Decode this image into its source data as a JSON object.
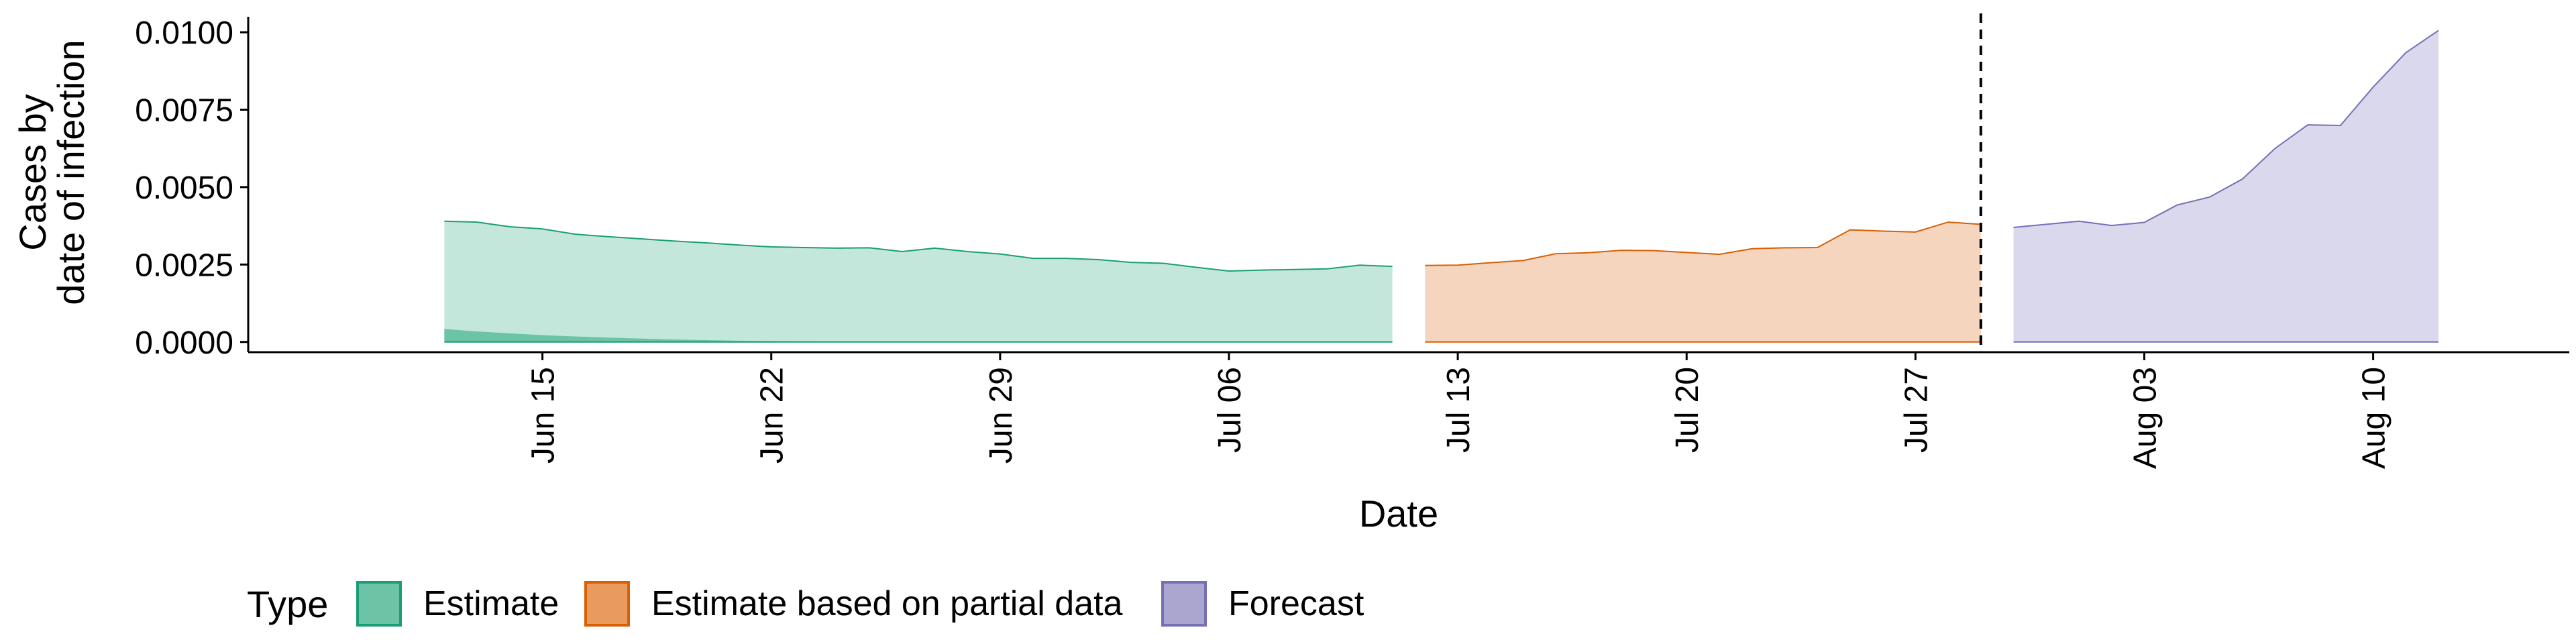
{
  "chart_data": {
    "type": "area",
    "xlabel": "Date",
    "ylabel_lines": [
      "Cases by",
      "date of infection"
    ],
    "x_domain": [
      "2020-06-06",
      "2020-08-16"
    ],
    "ylim": [
      -0.00033,
      0.0105
    ],
    "y_ticks": [
      {
        "value": 0.0,
        "label": "0.0000"
      },
      {
        "value": 0.0025,
        "label": "0.0025"
      },
      {
        "value": 0.005,
        "label": "0.0050"
      },
      {
        "value": 0.0075,
        "label": "0.0075"
      },
      {
        "value": 0.01,
        "label": "0.0100"
      }
    ],
    "x_ticks": [
      {
        "date": "2020-06-15",
        "label": "Jun 15"
      },
      {
        "date": "2020-06-22",
        "label": "Jun 22"
      },
      {
        "date": "2020-06-29",
        "label": "Jun 29"
      },
      {
        "date": "2020-07-06",
        "label": "Jul 06"
      },
      {
        "date": "2020-07-13",
        "label": "Jul 13"
      },
      {
        "date": "2020-07-20",
        "label": "Jul 20"
      },
      {
        "date": "2020-07-27",
        "label": "Jul 27"
      },
      {
        "date": "2020-08-03",
        "label": "Aug 03"
      },
      {
        "date": "2020-08-10",
        "label": "Aug 10"
      }
    ],
    "vline_date": "2020-07-29",
    "legend_title": "Type",
    "legend_position": "bottom",
    "grid": false,
    "series": [
      {
        "name": "Estimate",
        "fill": "#c4e7dc",
        "stroke": "#1b9e77",
        "inner_fill": "#6cc3a6",
        "x": [
          "2020-06-12",
          "2020-06-13",
          "2020-06-14",
          "2020-06-15",
          "2020-06-16",
          "2020-06-17",
          "2020-06-18",
          "2020-06-19",
          "2020-06-20",
          "2020-06-21",
          "2020-06-22",
          "2020-06-23",
          "2020-06-24",
          "2020-06-25",
          "2020-06-26",
          "2020-06-27",
          "2020-06-28",
          "2020-06-29",
          "2020-06-30",
          "2020-07-01",
          "2020-07-02",
          "2020-07-03",
          "2020-07-04",
          "2020-07-05",
          "2020-07-06",
          "2020-07-07",
          "2020-07-08",
          "2020-07-09",
          "2020-07-10",
          "2020-07-11"
        ],
        "upper": [
          0.0039,
          0.00387,
          0.00372,
          0.00365,
          0.00348,
          0.0034,
          0.00333,
          0.00326,
          0.0032,
          0.00313,
          0.00307,
          0.00305,
          0.00303,
          0.00304,
          0.00292,
          0.00303,
          0.00292,
          0.00284,
          0.0027,
          0.0027,
          0.00266,
          0.00257,
          0.00254,
          0.00241,
          0.00229,
          0.00232,
          0.00234,
          0.00236,
          0.00248,
          0.00244
        ],
        "lower": [
          0,
          0,
          0,
          0,
          0,
          0,
          0,
          0,
          0,
          0,
          0,
          0,
          0,
          0,
          0,
          0,
          0,
          0,
          0,
          0,
          0,
          0,
          0,
          0,
          0,
          0,
          0,
          0,
          0,
          0
        ],
        "inner_upper": [
          0.00042,
          0.00034,
          0.00028,
          0.00022,
          0.00018,
          0.00014,
          0.00011,
          8e-05,
          6e-05,
          4e-05,
          3e-05,
          2e-05,
          1e-05,
          1e-05,
          0,
          0,
          0,
          0,
          0,
          0,
          0,
          0,
          0,
          0,
          0,
          0,
          0,
          0,
          0,
          0
        ]
      },
      {
        "name": "Estimate based on partial data",
        "fill": "#f6d5bf",
        "stroke": "#d95f02",
        "inner_fill": "#e99a5e",
        "x": [
          "2020-07-12",
          "2020-07-13",
          "2020-07-14",
          "2020-07-15",
          "2020-07-16",
          "2020-07-17",
          "2020-07-18",
          "2020-07-19",
          "2020-07-20",
          "2020-07-21",
          "2020-07-22",
          "2020-07-23",
          "2020-07-24",
          "2020-07-25",
          "2020-07-26",
          "2020-07-27",
          "2020-07-28",
          "2020-07-29"
        ],
        "upper": [
          0.00247,
          0.00248,
          0.00256,
          0.00263,
          0.00285,
          0.00288,
          0.00296,
          0.00295,
          0.00289,
          0.00283,
          0.00301,
          0.00304,
          0.00305,
          0.00362,
          0.00358,
          0.00355,
          0.00387,
          0.0038
        ],
        "lower": [
          0,
          0,
          0,
          0,
          0,
          0,
          0,
          0,
          0,
          0,
          0,
          0,
          0,
          0,
          0,
          0,
          0,
          0
        ],
        "inner_upper": [
          0,
          0,
          0,
          0,
          0,
          0,
          0,
          0,
          0,
          0,
          0,
          0,
          0,
          0,
          0,
          0,
          0,
          0
        ]
      },
      {
        "name": "Forecast",
        "fill": "#dad8ec",
        "stroke": "#7570b3",
        "inner_fill": "#aaa6d0",
        "x": [
          "2020-07-30",
          "2020-07-31",
          "2020-08-01",
          "2020-08-02",
          "2020-08-03",
          "2020-08-04",
          "2020-08-05",
          "2020-08-06",
          "2020-08-07",
          "2020-08-08",
          "2020-08-09",
          "2020-08-10",
          "2020-08-11",
          "2020-08-12"
        ],
        "upper": [
          0.0037,
          0.0038,
          0.0039,
          0.00376,
          0.00386,
          0.00442,
          0.00468,
          0.00526,
          0.00625,
          0.00701,
          0.00699,
          0.00823,
          0.00934,
          0.01006
        ],
        "lower": [
          0,
          0,
          0,
          0,
          0,
          0,
          0,
          0,
          0,
          0,
          0,
          0,
          0,
          0
        ],
        "inner_upper": [
          0,
          0,
          0,
          0,
          0,
          0,
          0,
          0,
          0,
          0,
          0,
          0,
          0,
          0
        ]
      }
    ]
  }
}
